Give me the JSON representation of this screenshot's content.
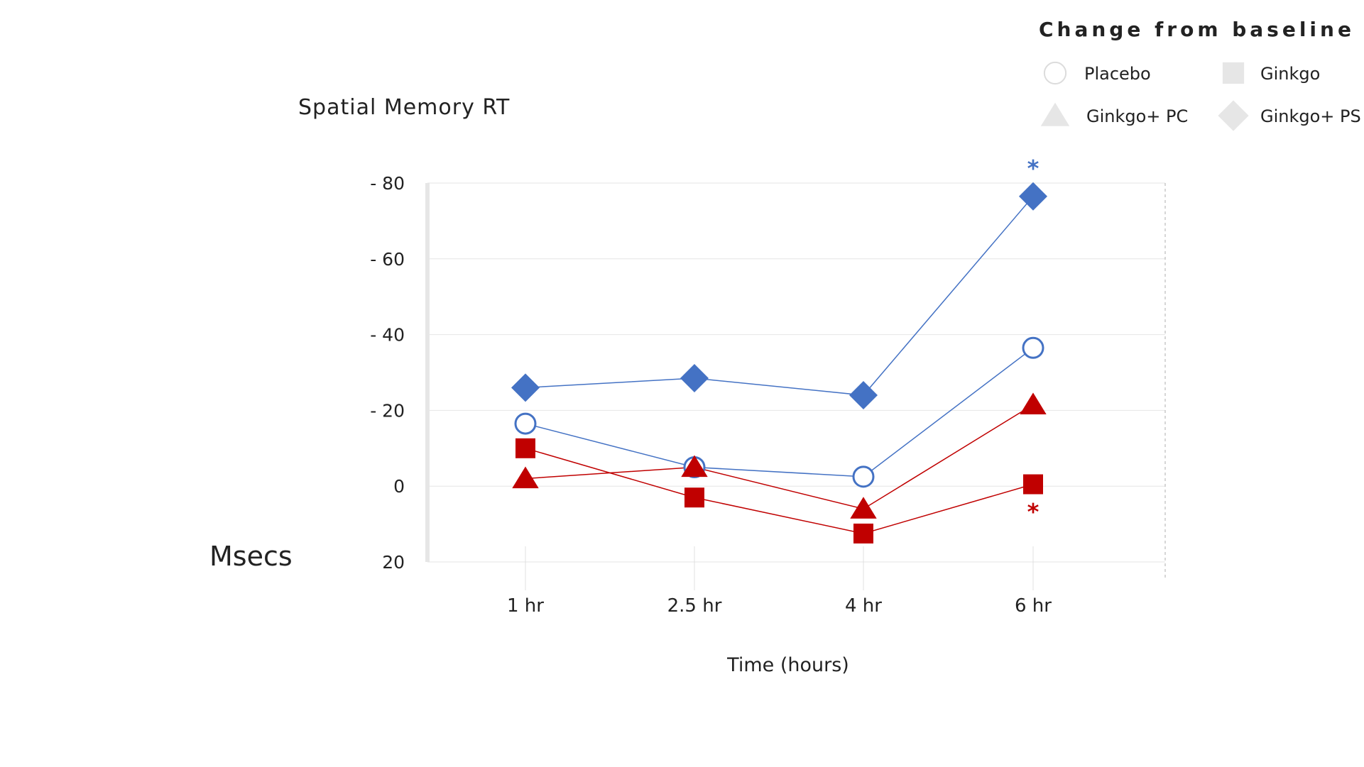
{
  "legend": {
    "title": "Change from baseline",
    "items": [
      {
        "label": "Placebo",
        "icon": "circle-icon"
      },
      {
        "label": "Ginkgo",
        "icon": "square-icon"
      },
      {
        "label": "Ginkgo+ PC",
        "icon": "triangle-icon"
      },
      {
        "label": "Ginkgo+ PS",
        "icon": "diamond-icon"
      }
    ]
  },
  "colors": {
    "blue": "#4472c4",
    "red": "#c00000",
    "legend_marker": "#e6e6e6",
    "grid": "#e6e6e6",
    "axis_left": "#e6e6e6",
    "text": "#222222"
  },
  "chart_data": {
    "type": "line",
    "title": "Spatial Memory RT",
    "xlabel": "Time (hours)",
    "ylabel": "Msecs",
    "categories": [
      "1 hr",
      "2.5 hr",
      "4 hr",
      "6 hr"
    ],
    "y_ticks": [
      {
        "value": 80,
        "label": "- 80"
      },
      {
        "value": 60,
        "label": "- 60"
      },
      {
        "value": 40,
        "label": "- 40"
      },
      {
        "value": 20,
        "label": "- 20"
      },
      {
        "value": 0,
        "label": "0"
      },
      {
        "value": -20,
        "label": "20"
      }
    ],
    "ylim": [
      -20,
      80
    ],
    "y_meaning": "decrease in reaction time (msecs), plotted upward",
    "legend_position": "top-right",
    "series": [
      {
        "name": "Placebo",
        "marker": "circle",
        "color": "#4472c4",
        "filled": false,
        "values": [
          16.5,
          5,
          2.5,
          36.5
        ]
      },
      {
        "name": "Ginkgo",
        "marker": "square",
        "color": "#c00000",
        "filled": true,
        "values": [
          10,
          -3,
          -12.5,
          0.5
        ]
      },
      {
        "name": "Ginkgo+ PC",
        "marker": "triangle",
        "color": "#c00000",
        "filled": true,
        "values": [
          2,
          5,
          -6,
          21.5
        ]
      },
      {
        "name": "Ginkgo+ PS",
        "marker": "diamond",
        "color": "#4472c4",
        "filled": true,
        "values": [
          26,
          28.5,
          24,
          76.5
        ]
      }
    ],
    "annotations": [
      {
        "text": "*",
        "category": "6 hr",
        "series": "Ginkgo+ PS",
        "color": "#4472c4",
        "placement": "above"
      },
      {
        "text": "*",
        "category": "6 hr",
        "series": "Ginkgo",
        "color": "#c00000",
        "placement": "below"
      }
    ]
  }
}
